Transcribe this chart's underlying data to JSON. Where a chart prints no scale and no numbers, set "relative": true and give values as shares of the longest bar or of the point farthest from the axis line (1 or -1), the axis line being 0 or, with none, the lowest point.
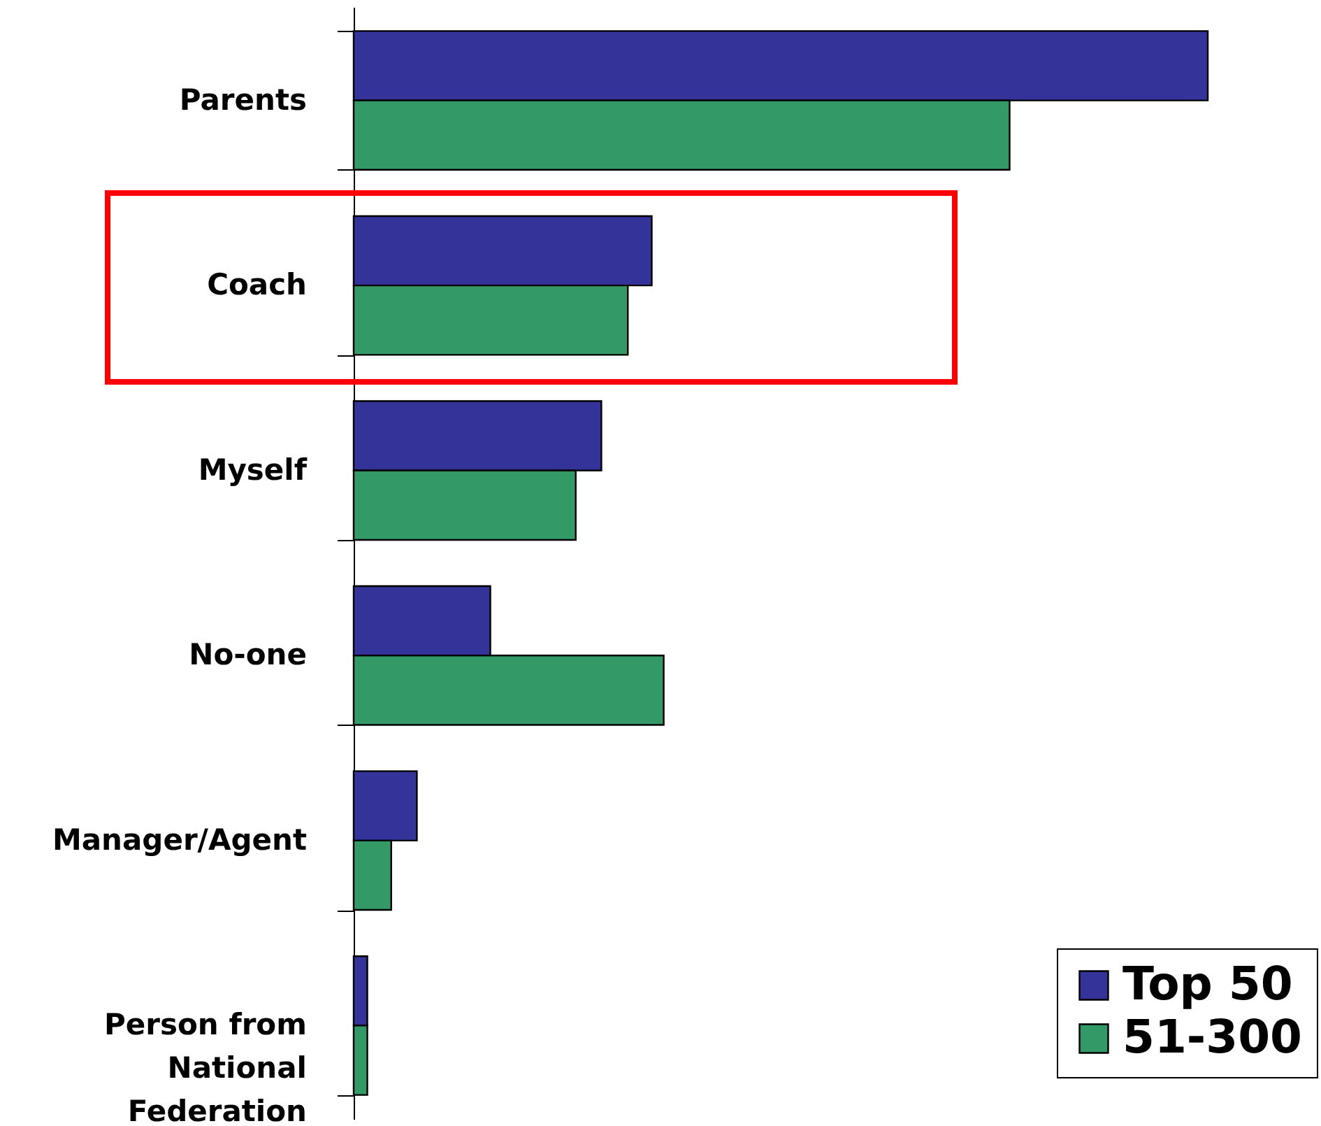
{
  "chart_data": {
    "type": "bar",
    "orientation": "horizontal",
    "relative": true,
    "legend": "bottom right",
    "categories": [
      "Parents",
      "Coach",
      "Myself",
      "No-one",
      "Manager/Agent",
      "Person from National Federation"
    ],
    "series": [
      {
        "name": "Top 50",
        "color": "#33339a",
        "values": [
          1,
          0.349,
          0.29,
          0.16,
          0.074,
          0.016
        ]
      },
      {
        "name": "51-300",
        "color": "#339966",
        "values": [
          0.768,
          0.321,
          0.26,
          0.363,
          0.044,
          0.016
        ]
      }
    ]
  }
}
